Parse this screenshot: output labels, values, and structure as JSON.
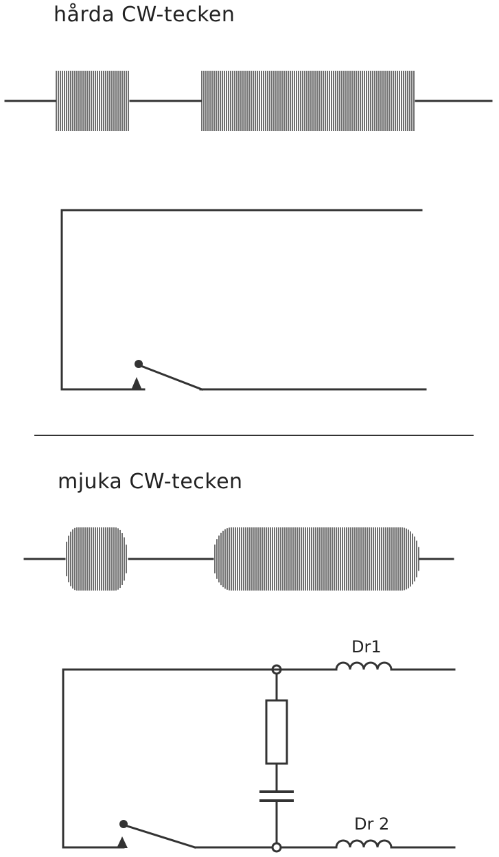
{
  "sections": {
    "hard": {
      "title": "hårda CW-tecken"
    },
    "soft": {
      "title": "mjuka CW-tecken"
    }
  },
  "components": {
    "choke1": "Dr1",
    "choke2": "Dr 2"
  },
  "colors": {
    "ink": "#333333",
    "background": "#ffffff"
  }
}
